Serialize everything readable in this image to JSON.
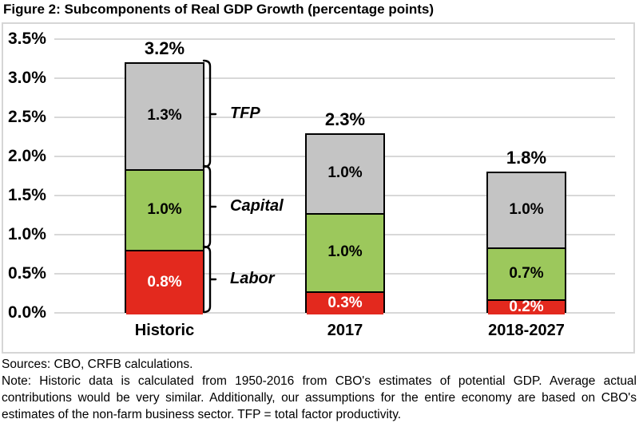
{
  "title": "Figure 2: Subcomponents of Real GDP Growth (percentage points)",
  "chart_data": {
    "type": "bar",
    "stacked": true,
    "title": "Figure 2: Subcomponents of Real GDP Growth (percentage points)",
    "categories": [
      "Historic",
      "2017",
      "2018-2027"
    ],
    "series": [
      {
        "name": "Labor",
        "color": "#e3291e",
        "label_color": "#ffffff",
        "values": [
          0.8,
          0.3,
          0.2
        ],
        "labels": [
          "0.8%",
          "0.3%",
          "0.2%"
        ]
      },
      {
        "name": "Capital",
        "color": "#9cc85c",
        "label_color": "#000000",
        "values": [
          1.0,
          1.0,
          0.7
        ],
        "labels": [
          "1.0%",
          "1.0%",
          "0.7%"
        ]
      },
      {
        "name": "TFP",
        "color": "#c4c4c4",
        "label_color": "#000000",
        "values": [
          1.3,
          1.0,
          1.0
        ],
        "labels": [
          "1.3%",
          "1.0%",
          "1.0%"
        ]
      }
    ],
    "totals": [
      "3.2%",
      "2.3%",
      "1.8%"
    ],
    "total_values": [
      3.2,
      2.3,
      1.8
    ],
    "y_ticks": [
      "3.5%",
      "3.0%",
      "2.5%",
      "2.0%",
      "1.5%",
      "1.0%",
      "0.5%",
      "0.0%"
    ],
    "ylim": [
      0.0,
      3.5
    ],
    "grid": true,
    "legend_position": "brackets-right-of-first-bar",
    "bracket_annotations": [
      {
        "label": "TFP",
        "series_index": 2
      },
      {
        "label": "Capital",
        "series_index": 1
      },
      {
        "label": "Labor",
        "series_index": 0
      }
    ]
  },
  "footer": {
    "sources": "Sources: CBO, CRFB calculations.",
    "note": "Note: Historic data is calculated from 1950-2016 from CBO's estimates of potential GDP. Average actual contributions would be very similar. Additionally, our assumptions for the entire economy are based on CBO's estimates of the non-farm business sector. TFP = total factor productivity."
  }
}
